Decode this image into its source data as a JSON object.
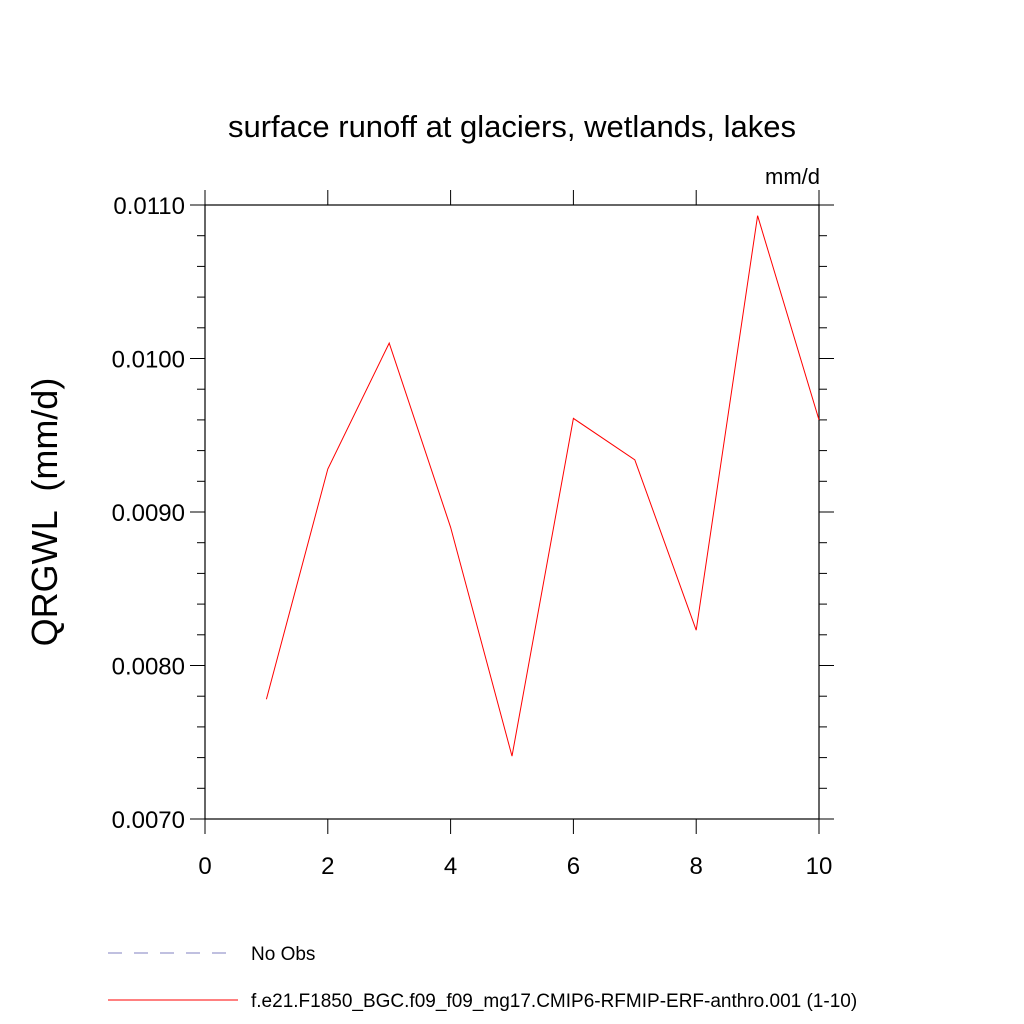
{
  "chart_data": {
    "type": "line",
    "title": "surface runoff at glaciers, wetlands, lakes",
    "units_label": "mm/d",
    "ylabel": "QRGWL  (mm/d)",
    "xlabel": "",
    "xlim": [
      0,
      10
    ],
    "ylim": [
      0.007,
      0.011
    ],
    "x_ticks": [
      0,
      2,
      4,
      6,
      8,
      10
    ],
    "x_tick_labels": [
      "0",
      "2",
      "4",
      "6",
      "8",
      "10"
    ],
    "y_ticks": [
      0.007,
      0.008,
      0.009,
      0.01,
      0.011
    ],
    "y_tick_labels": [
      "0.0070",
      "0.0080",
      "0.0090",
      "0.0100",
      "0.0110"
    ],
    "grid": false,
    "legend_position": "bottom",
    "series": [
      {
        "name": "f.e21.F1850_BGC.f09_f09_mg17.CMIP6-RFMIP-ERF-anthro.001 (1-10)",
        "color": "#ff0000",
        "dash": "solid",
        "x": [
          1,
          2,
          3,
          4,
          5,
          6,
          7,
          8,
          9,
          10
        ],
        "values": [
          0.00778,
          0.00928,
          0.0101,
          0.0089,
          0.00741,
          0.00961,
          0.00934,
          0.00823,
          0.01093,
          0.0096
        ]
      }
    ],
    "legend": [
      {
        "label": "No Obs",
        "color": "#8080c0",
        "dash": "dashed"
      },
      {
        "label": "f.e21.F1850_BGC.f09_f09_mg17.CMIP6-RFMIP-ERF-anthro.001 (1-10)",
        "color": "#ff0000",
        "dash": "solid"
      }
    ]
  }
}
